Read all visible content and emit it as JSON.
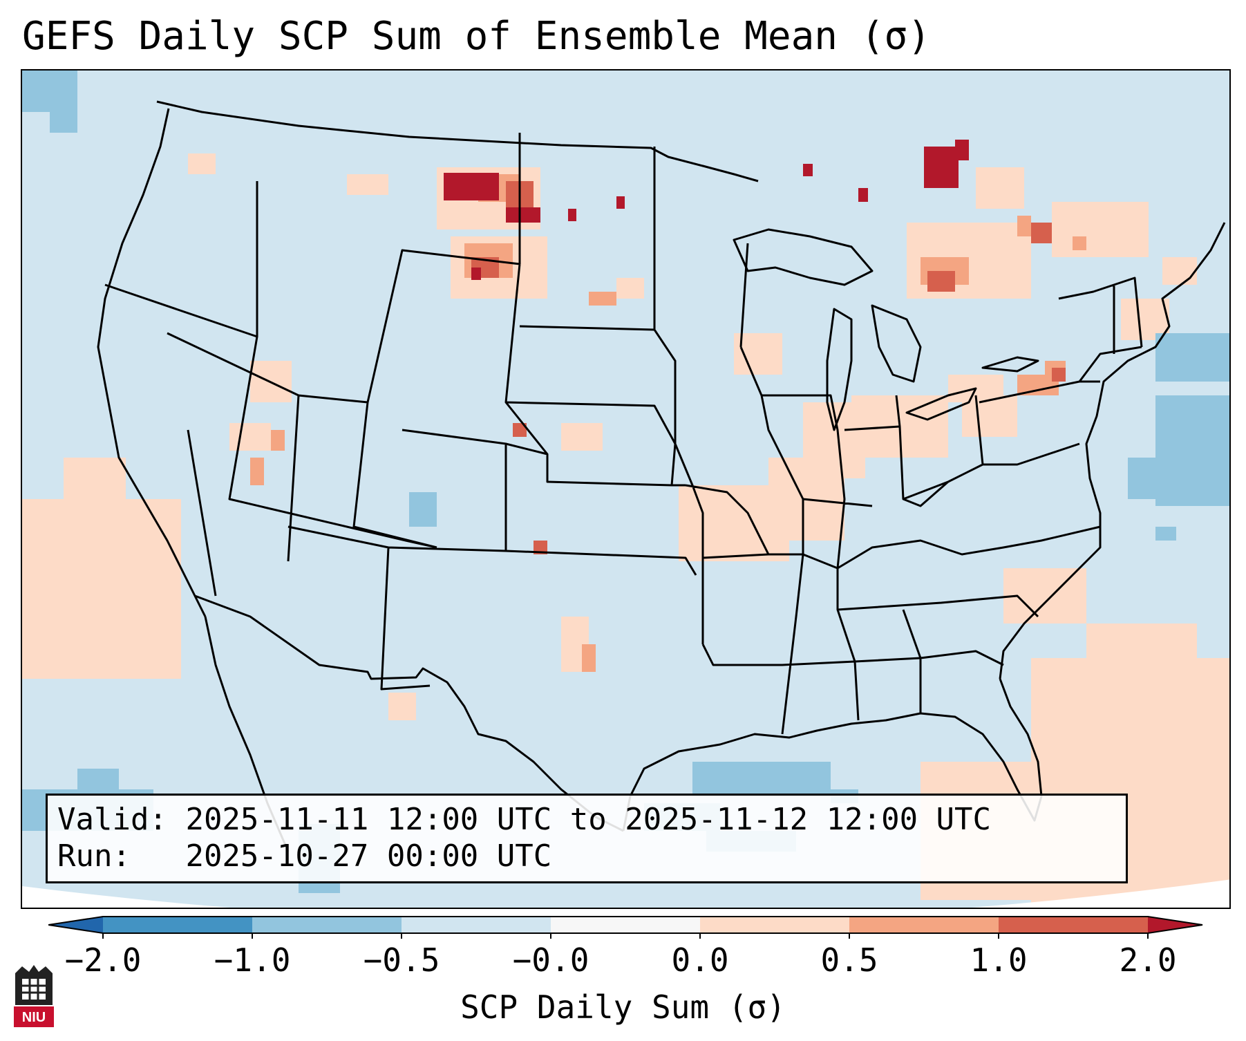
{
  "title": "GEFS Daily SCP Sum of Ensemble Mean (σ)",
  "info": {
    "valid_label": "Valid:",
    "valid_value": "2025-11-11 12:00 UTC to 2025-11-12 12:00 UTC",
    "run_label": "Run:",
    "run_value": "2025-10-27 00:00 UTC"
  },
  "colorbar": {
    "label": "SCP Daily Sum (σ)",
    "ticks": [
      "−2.0",
      "−1.0",
      "−0.5",
      "−0.0",
      "0.0",
      "0.5",
      "1.0",
      "2.0"
    ],
    "bins": [
      {
        "range": "≤ -2.0 (extend)",
        "color": "#2166ac"
      },
      {
        "range": "-2.0 to -1.0",
        "color": "#4393c3"
      },
      {
        "range": "-1.0 to -0.5",
        "color": "#92c5de"
      },
      {
        "range": "-0.5 to -0.0",
        "color": "#d1e5f0"
      },
      {
        "range": "-0.0 to 0.0",
        "color": "#f7f7f7"
      },
      {
        "range": "0.0 to 0.5",
        "color": "#fddbc7"
      },
      {
        "range": "0.5 to 1.0",
        "color": "#f4a582"
      },
      {
        "range": "1.0 to 2.0",
        "color": "#d6604d"
      },
      {
        "range": "≥ 2.0 (extend)",
        "color": "#b2182b"
      }
    ]
  },
  "map": {
    "region": "Contiguous United States",
    "background_color": "#d1e5f0"
  },
  "logo": {
    "text": "NIU",
    "color": "#c8102e"
  }
}
